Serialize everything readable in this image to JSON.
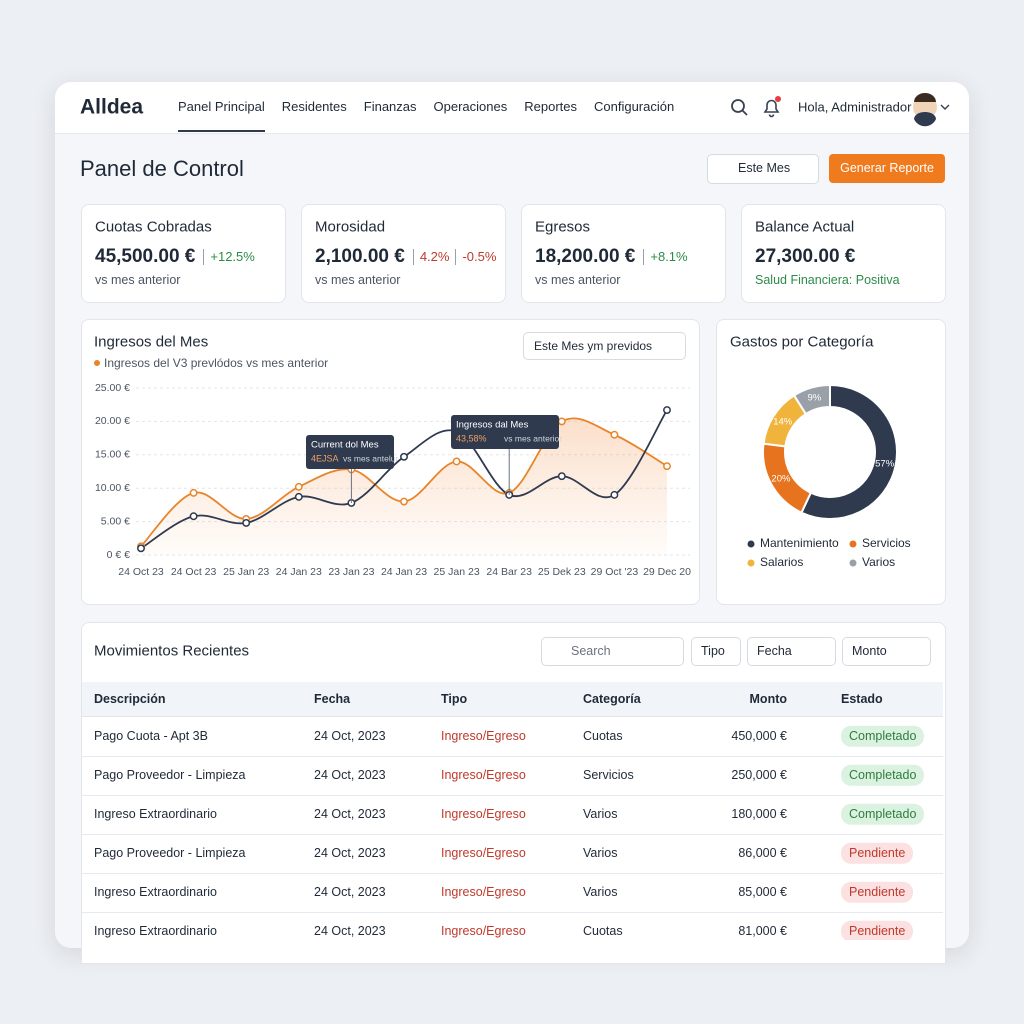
{
  "nav": {
    "logo": "Alldea",
    "items": [
      "Panel Principal",
      "Residentes",
      "Finanzas",
      "Operaciones",
      "Reportes",
      "Configuración"
    ],
    "greeting": "Hola, Administrador"
  },
  "header": {
    "title": "Panel de Control",
    "period": "Este Mes",
    "button": "Generar Reporte"
  },
  "kpis": [
    {
      "title": "Cuotas Cobradas",
      "value": "45,500.00 €",
      "changes": [
        {
          "text": "+12.5%",
          "color": "#2e8b47"
        }
      ],
      "note": "vs mes anterior"
    },
    {
      "title": "Morosidad",
      "value": "2,100.00 €",
      "changes": [
        {
          "text": "4.2%",
          "color": "#c0392b"
        },
        {
          "text": "-0.5%",
          "color": "#c0392b"
        }
      ],
      "note": "vs mes anterior"
    },
    {
      "title": "Egresos",
      "value": "18,200.00 €",
      "changes": [
        {
          "text": "+8.1%",
          "color": "#2e8b47"
        }
      ],
      "note": "vs mes anterior"
    },
    {
      "title": "Balance Actual",
      "value": "27,300.00 €",
      "note": "Salud Financiera: Positiva",
      "note_color": "#2e8b47"
    }
  ],
  "chart_data": [
    {
      "type": "line",
      "title": "Ingresos del Mes",
      "dropdown": "Este Mes ym previdos",
      "categories": [
        "24 Oct 23",
        "24 Oct 23",
        "25 Jan 23",
        "24 Jan 23",
        "23 Jan 23",
        "24 Jan 23",
        "25 Jan 23",
        "24 Bar 23",
        "25 Dek 23",
        "29 Oct '23",
        "29 Dec 20"
      ],
      "series": [
        {
          "name": "Ingresos del V3 prevlódos vs mes anterior",
          "color": "#e8852a",
          "values": [
            1.3,
            9.3,
            5.4,
            10.2,
            12.8,
            8,
            14,
            9.3,
            20,
            18,
            13.3
          ]
        },
        {
          "color": "#2f3a4f",
          "values": [
            1,
            5.8,
            4.8,
            8.7,
            7.8,
            14.7,
            18.5,
            9,
            11.8,
            9,
            21.7
          ]
        }
      ],
      "ylim": [
        0,
        25
      ],
      "yticks": [
        {
          "value": 0,
          "label": "0 € €"
        },
        {
          "value": 5,
          "label": "5.00 €"
        },
        {
          "value": 10,
          "label": "10.00 €"
        },
        {
          "value": 15,
          "label": "15.00 €"
        },
        {
          "value": 20,
          "label": "20.00 €"
        },
        {
          "value": 25,
          "label": "25.00 €"
        }
      ],
      "grid": true,
      "annotations": [
        {
          "title": "Current dol Mes",
          "value": "4EJSA",
          "note": "vs mes antelur",
          "index": 4
        },
        {
          "title": "Ingresos dal Mes",
          "value": "43,58%",
          "note": "vs mes anterior",
          "index": 7
        }
      ]
    },
    {
      "type": "donut",
      "title": "Gastos por Categoría",
      "categories": [
        "Mantenimiento",
        "Servicios",
        "Salarios",
        "Varios"
      ],
      "values": [
        57,
        20,
        14,
        9
      ],
      "value_labels": [
        "57%",
        "20%",
        "14%",
        "9%"
      ],
      "colors": [
        "#2f3a4f",
        "#e8731e",
        "#f0b43c",
        "#9aa0a8"
      ]
    }
  ],
  "table": {
    "title": "Movimientos Recientes",
    "search": "Search",
    "filters": [
      "Tipo",
      "Fecha",
      "Monto"
    ],
    "columns": [
      "Descripción",
      "Fecha",
      "Tipo",
      "Categoría",
      "Monto",
      "Estado"
    ],
    "rows": [
      [
        "Pago Cuota - Apt 3B",
        "24 Oct, 2023",
        "Ingreso/Egreso",
        "Cuotas",
        "450,000 €",
        "Completado"
      ],
      [
        "Pago Proveedor - Limpieza",
        "24 Oct, 2023",
        "Ingreso/Egreso",
        "Servicios",
        "250,000 €",
        "Completado"
      ],
      [
        "Ingreso Extraordinario",
        "24 Oct, 2023",
        "Ingreso/Egreso",
        "Varios",
        "180,000 €",
        "Completado"
      ],
      [
        "Pago Proveedor - Limpieza",
        "24 Oct, 2023",
        "Ingreso/Egreso",
        "Varios",
        "86,000 €",
        "Pendiente"
      ],
      [
        "Ingreso Extraordinario",
        "24 Oct, 2023",
        "Ingreso/Egreso",
        "Varios",
        "85,000 €",
        "Pendiente"
      ],
      [
        "Ingreso Extraordinario",
        "24 Oct, 2023",
        "Ingreso/Egreso",
        "Cuotas",
        "81,000 €",
        "Pendiente"
      ]
    ]
  }
}
